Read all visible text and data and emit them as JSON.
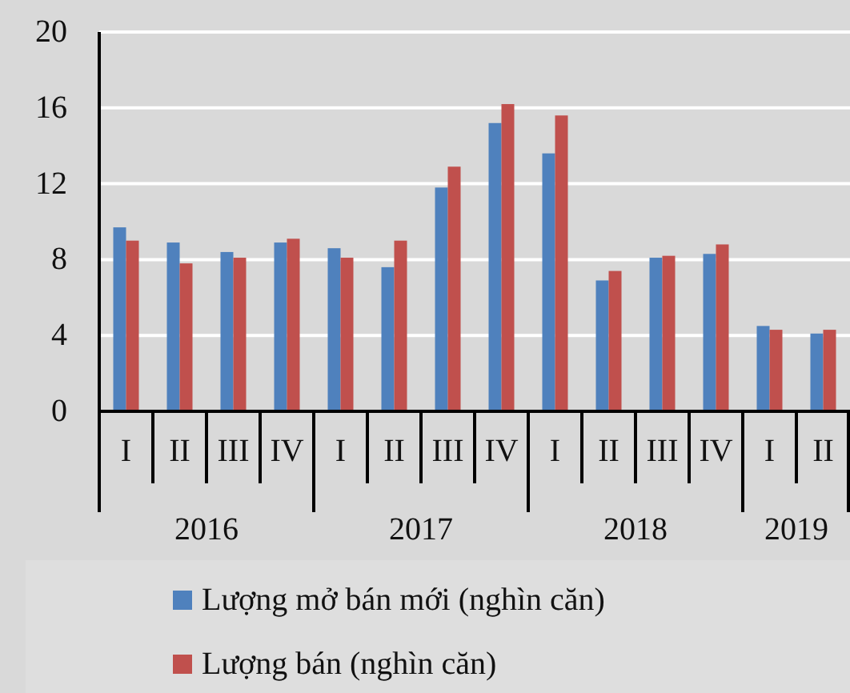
{
  "chart_data": {
    "type": "bar",
    "categories": [
      "I",
      "II",
      "III",
      "IV",
      "I",
      "II",
      "III",
      "IV",
      "I",
      "II",
      "III",
      "IV",
      "I",
      "II"
    ],
    "series": [
      {
        "name": "Lượng mở bán mới (nghìn căn)",
        "color": "#4f81bd",
        "values": [
          9.7,
          8.9,
          8.4,
          8.9,
          8.6,
          7.6,
          11.8,
          15.2,
          13.6,
          6.9,
          8.1,
          8.3,
          4.5,
          4.1
        ]
      },
      {
        "name": "Lượng bán (nghìn căn)",
        "color": "#c0504d",
        "values": [
          9.0,
          7.8,
          8.1,
          9.1,
          8.1,
          9.0,
          12.9,
          16.2,
          15.6,
          7.4,
          8.2,
          8.8,
          4.3,
          4.3
        ]
      }
    ],
    "annotations": [
      "2016",
      "2017",
      "2018",
      "2019"
    ],
    "ylim": [
      0,
      20
    ],
    "yticks": [
      0,
      4,
      8,
      12,
      16,
      20
    ],
    "grid": "y",
    "legend": "bottom"
  }
}
